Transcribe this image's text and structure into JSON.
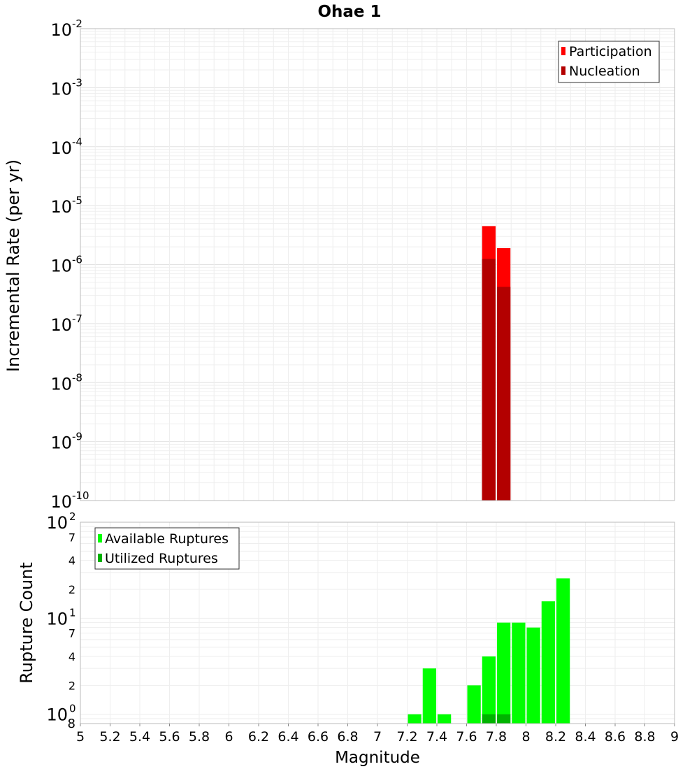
{
  "title": "Ohae 1",
  "chart_data": [
    {
      "type": "bar",
      "ylabel": "Incremental Rate (per yr)",
      "yscale": "log",
      "ylim": [
        1e-10,
        0.01
      ],
      "ytick_exponents": [
        "-2",
        "-3",
        "-4",
        "-5",
        "-6",
        "-7",
        "-8",
        "-9",
        "-10"
      ],
      "legend": [
        {
          "label": "Participation",
          "color": "#ff0000"
        },
        {
          "label": "Nucleation",
          "color": "#b30000"
        }
      ],
      "legend_position": "top-right",
      "grid": true,
      "series": [
        {
          "name": "Participation",
          "color": "#ff0000",
          "x": [
            7.75,
            7.85
          ],
          "values": [
            4.5e-06,
            1.9e-06
          ]
        },
        {
          "name": "Nucleation",
          "color": "#b30000",
          "x": [
            7.75,
            7.85
          ],
          "values": [
            1.25e-06,
            4.2e-07
          ]
        }
      ]
    },
    {
      "type": "bar",
      "ylabel": "Rupture Count",
      "yscale": "log",
      "ylim": [
        0.8,
        100
      ],
      "ytick_labels": {
        "major": [
          "10",
          "10",
          "10"
        ],
        "major_exponents": [
          "2",
          "1",
          "0"
        ],
        "minor": [
          "7",
          "4",
          "2",
          "7",
          "4",
          "2"
        ],
        "bottom": "8"
      },
      "xlabel": "Magnitude",
      "xlim": [
        5,
        9
      ],
      "xticks": [
        "5",
        "5.2",
        "5.4",
        "5.6",
        "5.8",
        "6",
        "6.2",
        "6.4",
        "6.6",
        "6.8",
        "7",
        "7.2",
        "7.4",
        "7.6",
        "7.8",
        "8",
        "8.2",
        "8.4",
        "8.6",
        "8.8",
        "9"
      ],
      "legend": [
        {
          "label": "Available Ruptures",
          "color": "#00ff00"
        },
        {
          "label": "Utilized Ruptures",
          "color": "#00b300"
        }
      ],
      "legend_position": "top-left",
      "grid": true,
      "series": [
        {
          "name": "Available Ruptures",
          "color": "#00ff00",
          "x": [
            7.25,
            7.35,
            7.45,
            7.65,
            7.75,
            7.85,
            7.95,
            8.05,
            8.15,
            8.25
          ],
          "values": [
            1,
            3,
            1,
            2,
            4,
            9,
            9,
            8,
            15,
            26
          ]
        },
        {
          "name": "Utilized Ruptures",
          "color": "#00b300",
          "x": [
            7.75,
            7.85
          ],
          "values": [
            1,
            1
          ]
        }
      ]
    }
  ]
}
